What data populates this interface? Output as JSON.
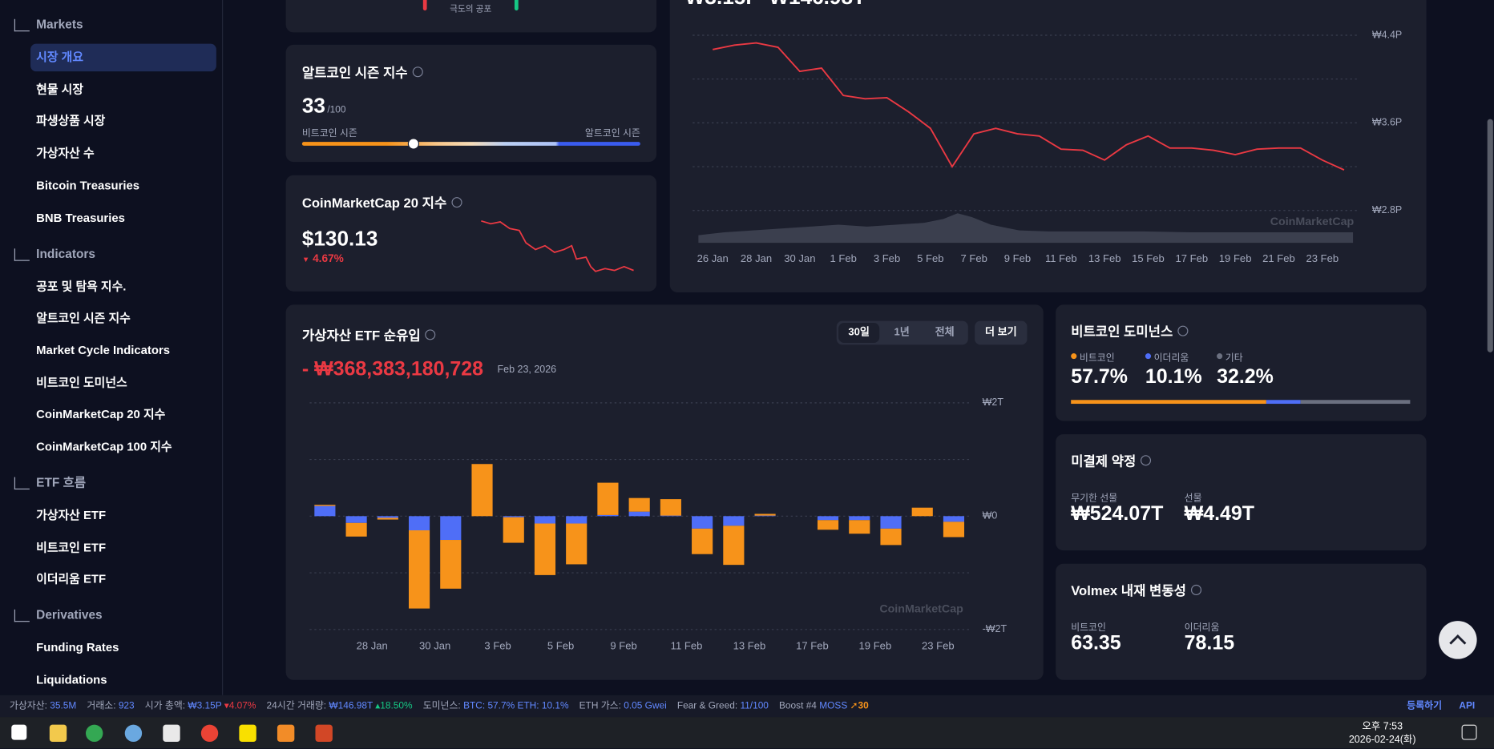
{
  "sidebar": {
    "sections": [
      {
        "title": "Markets",
        "items": [
          "시장 개요",
          "현물 시장",
          "파생상품 시장",
          "가상자산 수",
          "Bitcoin Treasuries",
          "BNB Treasuries"
        ]
      },
      {
        "title": "Indicators",
        "items": [
          "공포 및 탐욕 지수.",
          "알트코인 시즌 지수",
          "Market Cycle Indicators",
          "비트코인 도미넌스",
          "CoinMarketCap 20 지수",
          "CoinMarketCap 100 지수"
        ]
      },
      {
        "title": "ETF 흐름",
        "items": [
          "가상자산 ETF",
          "비트코인 ETF",
          "이더리움 ETF"
        ]
      },
      {
        "title": "Derivatives",
        "items": [
          "Funding Rates",
          "Liquidations"
        ]
      }
    ]
  },
  "fear_greed": {
    "label": "극도의 공포"
  },
  "market_summary": {
    "market_cap": "₩3.15P",
    "volume": "₩146.98T"
  },
  "altcoin_season": {
    "title": "알트코인 시즌 지수",
    "value": 33,
    "max": "/100",
    "range": [
      0,
      100
    ],
    "left_label": "비트코인 시즌",
    "right_label": "알트코인 시즌"
  },
  "cmc20": {
    "title": "CoinMarketCap 20 지수",
    "price": "$130.13",
    "change": "4.67%"
  },
  "chart_data": [
    {
      "type": "line",
      "categories": [
        "26 Jan",
        null,
        "28 Jan",
        null,
        "30 Jan",
        null,
        "1 Feb",
        null,
        "3 Feb",
        null,
        "5 Feb",
        null,
        "7 Feb",
        null,
        "9 Feb",
        null,
        "11 Feb",
        null,
        "13 Feb",
        null,
        "15 Feb",
        null,
        "17 Feb",
        null,
        "19 Feb",
        null,
        "21 Feb",
        null,
        "23 Feb",
        null
      ],
      "values": [
        4.27,
        4.31,
        4.33,
        4.29,
        4.07,
        4.1,
        3.85,
        3.82,
        3.83,
        3.7,
        3.55,
        3.2,
        3.5,
        3.55,
        3.5,
        3.48,
        3.36,
        3.35,
        3.26,
        3.4,
        3.48,
        3.37,
        3.37,
        3.35,
        3.31,
        3.36,
        3.37,
        3.37,
        3.26,
        3.17
      ],
      "color": "#ea3943",
      "ylim": [
        2.8,
        4.4
      ],
      "yticks": [
        {
          "value": 2.8,
          "label": "₩2.8P"
        },
        {
          "value": 3.6,
          "label": "₩3.6P"
        },
        {
          "value": 4.4,
          "label": "₩4.4P"
        }
      ],
      "grid": true,
      "minor_grid": true,
      "watermark": "CoinMarketCap"
    },
    {
      "type": "bar",
      "stacked": true,
      "title": "가상자산 ETF 순유입",
      "total": "- ₩368,383,180,728",
      "date": "Feb 23, 2026",
      "ranges": [
        "30일",
        "1년",
        "전체"
      ],
      "more": "더 보기",
      "categories": [
        null,
        "28 Jan",
        null,
        "30 Jan",
        null,
        "3 Feb",
        null,
        "5 Feb",
        null,
        "9 Feb",
        null,
        "11 Feb",
        null,
        "13 Feb",
        null,
        "17 Feb",
        null,
        "19 Feb",
        null,
        "23 Feb",
        null
      ],
      "series": [
        {
          "color": "#4f6ef7",
          "values": [
            0.18,
            -0.12,
            -0.03,
            -0.25,
            -0.42,
            0,
            -0.02,
            -0.13,
            -0.13,
            0.02,
            0.08,
            0.01,
            -0.22,
            -0.17,
            0.01,
            null,
            -0.07,
            -0.07,
            -0.22,
            0,
            -0.1
          ]
        },
        {
          "color": "#f7931a",
          "values": [
            0.02,
            -0.24,
            -0.03,
            -1.38,
            -0.86,
            0.92,
            -0.45,
            -0.91,
            -0.72,
            0.57,
            0.24,
            0.29,
            -0.45,
            -0.69,
            0.03,
            null,
            -0.17,
            -0.24,
            -0.29,
            0.15,
            -0.27
          ]
        }
      ],
      "ylim": [
        -2,
        2
      ],
      "yticks": [
        {
          "value": -2,
          "label": "-₩2T"
        },
        {
          "value": 0,
          "label": "₩0"
        },
        {
          "value": 2,
          "label": "₩2T"
        }
      ],
      "grid": true,
      "minor_grid": true,
      "watermark": "CoinMarketCap"
    }
  ],
  "btc_dominance": {
    "title": "비트코인 도미넌스",
    "categories": [
      "비트코인",
      "이더리움",
      "기타"
    ],
    "values": [
      57.7,
      10.1,
      32.2
    ],
    "value_labels": [
      "57.7%",
      "10.1%",
      "32.2%"
    ],
    "colors": [
      "#f7931a",
      "#4f6ef7",
      "#6b7080"
    ]
  },
  "open_interest": {
    "title": "미결제 약정",
    "items": [
      {
        "label": "무기한 선물",
        "value": "₩524.07T"
      },
      {
        "label": "선물",
        "value": "₩4.49T"
      }
    ]
  },
  "volmex": {
    "title": "Volmex 내재 변동성",
    "items": [
      {
        "label": "비트코인",
        "value": 63.35
      },
      {
        "label": "이더리움",
        "value": 78.15
      }
    ]
  },
  "status_bar": {
    "items": [
      {
        "label": "가상자산:",
        "value": "35.5M"
      },
      {
        "label": "거래소:",
        "value": "923"
      },
      {
        "label": "시가 총액:",
        "value": "₩3.15P",
        "change": "4.07%",
        "dir": "down"
      },
      {
        "label": "24시간 거래량:",
        "value": "₩146.98T",
        "change": "18.50%",
        "dir": "up"
      },
      {
        "label": "도미넌스:",
        "value": "BTC: 57.7% ETH: 10.1%"
      },
      {
        "label": "ETH 가스:",
        "value": "0.05 Gwei"
      },
      {
        "label": "Fear & Greed:",
        "value": "11/100"
      },
      {
        "label": "Boost #4",
        "value": "MOSS",
        "change": "30",
        "dir": "boost"
      }
    ],
    "links": [
      "등록하기",
      "API"
    ]
  },
  "taskbar": {
    "time": "오후 7:53",
    "date": "2026-02-24(화)"
  }
}
